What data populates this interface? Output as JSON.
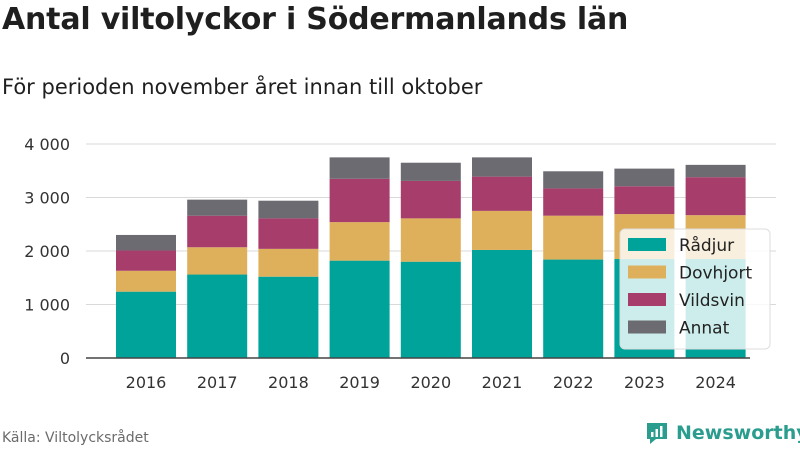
{
  "header": {
    "title": "Antal viltolyckor i Södermanlands län",
    "subtitle": "För perioden november året innan till oktober"
  },
  "footer": {
    "source": "Källa: Viltolycksrådet",
    "brand": "Newsworthy"
  },
  "chart_data": {
    "type": "bar",
    "stacked": true,
    "categories": [
      "2016",
      "2017",
      "2018",
      "2019",
      "2020",
      "2021",
      "2022",
      "2023",
      "2024"
    ],
    "series": [
      {
        "name": "Rådjur",
        "color": "#00a39a",
        "values": [
          1240,
          1560,
          1520,
          1820,
          1800,
          2020,
          1840,
          1850,
          1850
        ]
      },
      {
        "name": "Dovhjort",
        "color": "#dfb05c",
        "values": [
          390,
          510,
          520,
          720,
          810,
          730,
          820,
          840,
          820
        ]
      },
      {
        "name": "Vildsvin",
        "color": "#a63d6a",
        "values": [
          380,
          590,
          570,
          810,
          700,
          640,
          510,
          520,
          710
        ]
      },
      {
        "name": "Annat",
        "color": "#6d6b72",
        "values": [
          290,
          300,
          330,
          400,
          340,
          360,
          320,
          330,
          230
        ]
      }
    ],
    "yticks": [
      "0",
      "1 000",
      "2 000",
      "3 000",
      "4 000"
    ],
    "ylim": [
      0,
      4000
    ],
    "grid": true,
    "legend": "right"
  }
}
